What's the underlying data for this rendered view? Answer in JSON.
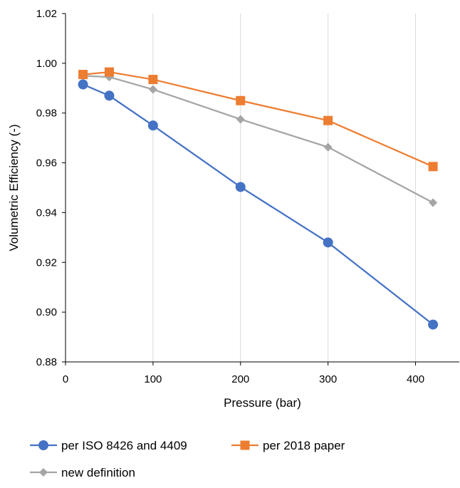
{
  "chart_data": {
    "type": "line",
    "title": "",
    "xlabel": "Pressure (bar)",
    "ylabel": "Volumetric Efficiency (-)",
    "xlim": [
      0,
      450
    ],
    "ylim": [
      0.88,
      1.02
    ],
    "x_ticks": [
      0,
      100,
      200,
      300,
      400
    ],
    "y_ticks": [
      0.88,
      0.9,
      0.92,
      0.94,
      0.96,
      0.98,
      1.0,
      1.02
    ],
    "x_tick_labels": [
      "0",
      "100",
      "200",
      "300",
      "400"
    ],
    "y_tick_labels": [
      "0.88",
      "0.90",
      "0.92",
      "0.94",
      "0.96",
      "0.98",
      "1.00",
      "1.02"
    ],
    "grid": "vertical",
    "legend_position": "bottom",
    "series": [
      {
        "name": "per ISO 8426 and 4409",
        "color": "#4472C4",
        "marker": "circle",
        "x": [
          20,
          50,
          100,
          200,
          300,
          420
        ],
        "y": [
          0.9915,
          0.987,
          0.975,
          0.9503,
          0.928,
          0.895
        ]
      },
      {
        "name": "per 2018 paper",
        "color": "#ED7D31",
        "marker": "square",
        "x": [
          20,
          50,
          100,
          200,
          300,
          420
        ],
        "y": [
          0.9955,
          0.9965,
          0.9935,
          0.985,
          0.977,
          0.9585
        ]
      },
      {
        "name": "new definition",
        "color": "#A5A5A5",
        "marker": "diamond",
        "x": [
          20,
          50,
          100,
          200,
          300,
          420
        ],
        "y": [
          0.995,
          0.9945,
          0.9895,
          0.9775,
          0.9663,
          0.944
        ]
      }
    ]
  }
}
